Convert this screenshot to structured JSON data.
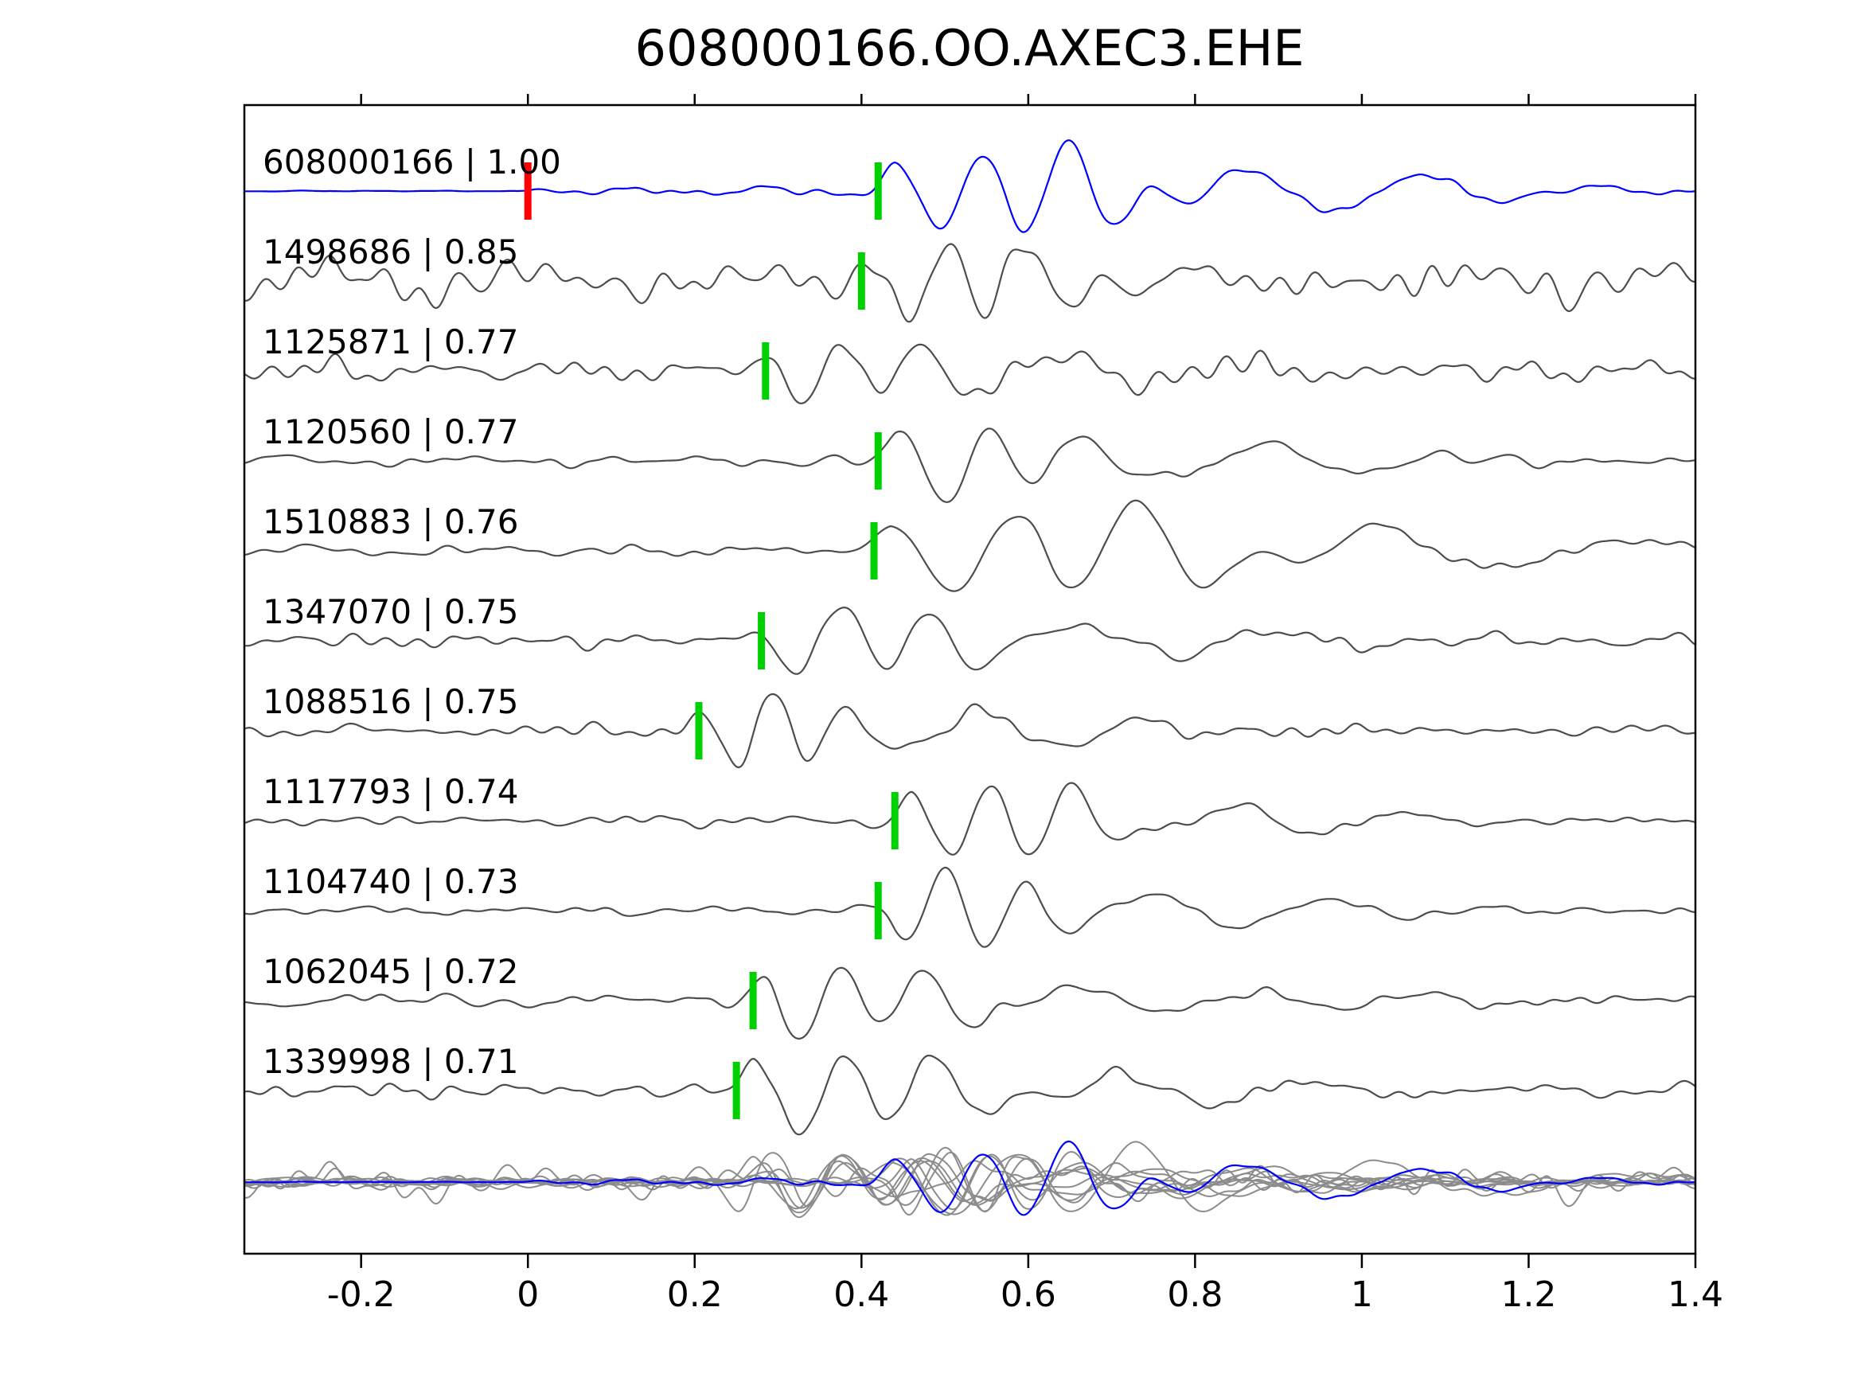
{
  "chart_data": {
    "type": "line",
    "title": "608000166.OO.AXEC3.EHE",
    "description": "Stacked seismic waveform traces with cross-correlation scores; reference trace in blue, matched traces in gray, pick markers in green, reference origin marker in red, all traces overlaid at bottom.",
    "x_axis": {
      "min": -0.34,
      "max": 1.4,
      "ticks": [
        {
          "value": -0.2,
          "label": "-0.2"
        },
        {
          "value": 0,
          "label": "0"
        },
        {
          "value": 0.2,
          "label": "0.2"
        },
        {
          "value": 0.4,
          "label": "0.4"
        },
        {
          "value": 0.6,
          "label": "0.6"
        },
        {
          "value": 0.8,
          "label": "0.8"
        },
        {
          "value": 1,
          "label": "1"
        },
        {
          "value": 1.2,
          "label": "1.2"
        },
        {
          "value": 1.4,
          "label": "1.4"
        }
      ]
    },
    "traces": [
      {
        "id": "608000166",
        "similarity": "1.00",
        "label": "608000166 | 1.00",
        "color": "#0000ff",
        "markers": [
          {
            "x": 0.0,
            "color": "#ff0000",
            "name": "reference"
          },
          {
            "x": 0.42,
            "color": "#00cf00",
            "name": "pick"
          }
        ]
      },
      {
        "id": "1498686",
        "similarity": "0.85",
        "label": "1498686 | 0.85",
        "color": "#4d4d4d",
        "markers": [
          {
            "x": 0.4,
            "color": "#00cf00",
            "name": "pick"
          }
        ]
      },
      {
        "id": "1125871",
        "similarity": "0.77",
        "label": "1125871 | 0.77",
        "color": "#4d4d4d",
        "markers": [
          {
            "x": 0.285,
            "color": "#00cf00",
            "name": "pick"
          }
        ]
      },
      {
        "id": "1120560",
        "similarity": "0.77",
        "label": "1120560 | 0.77",
        "color": "#4d4d4d",
        "markers": [
          {
            "x": 0.42,
            "color": "#00cf00",
            "name": "pick"
          }
        ]
      },
      {
        "id": "1510883",
        "similarity": "0.76",
        "label": "1510883 | 0.76",
        "color": "#4d4d4d",
        "markers": [
          {
            "x": 0.415,
            "color": "#00cf00",
            "name": "pick"
          }
        ]
      },
      {
        "id": "1347070",
        "similarity": "0.75",
        "label": "1347070 | 0.75",
        "color": "#4d4d4d",
        "markers": [
          {
            "x": 0.28,
            "color": "#00cf00",
            "name": "pick"
          }
        ]
      },
      {
        "id": "1088516",
        "similarity": "0.75",
        "label": "1088516 | 0.75",
        "color": "#4d4d4d",
        "markers": [
          {
            "x": 0.205,
            "color": "#00cf00",
            "name": "pick"
          }
        ]
      },
      {
        "id": "1117793",
        "similarity": "0.74",
        "label": "1117793 | 0.74",
        "color": "#4d4d4d",
        "markers": [
          {
            "x": 0.44,
            "color": "#00cf00",
            "name": "pick"
          }
        ]
      },
      {
        "id": "1104740",
        "similarity": "0.73",
        "label": "1104740 | 0.73",
        "color": "#4d4d4d",
        "markers": [
          {
            "x": 0.42,
            "color": "#00cf00",
            "name": "pick"
          }
        ]
      },
      {
        "id": "1062045",
        "similarity": "0.72",
        "label": "1062045 | 0.72",
        "color": "#4d4d4d",
        "markers": [
          {
            "x": 0.27,
            "color": "#00cf00",
            "name": "pick"
          }
        ]
      },
      {
        "id": "1339998",
        "similarity": "0.71",
        "label": "1339998 | 0.71",
        "color": "#4d4d4d",
        "markers": [
          {
            "x": 0.25,
            "color": "#00cf00",
            "name": "pick"
          }
        ]
      }
    ],
    "overlay": {
      "member_color": "#8c8c8c",
      "highlight_color": "#0000ff"
    },
    "colors": {
      "axis": "#000000",
      "reference_trace": "#0000ff",
      "member_trace": "#4d4d4d",
      "pick_marker": "#00cf00",
      "reference_marker": "#ff0000",
      "background": "#ffffff"
    }
  }
}
